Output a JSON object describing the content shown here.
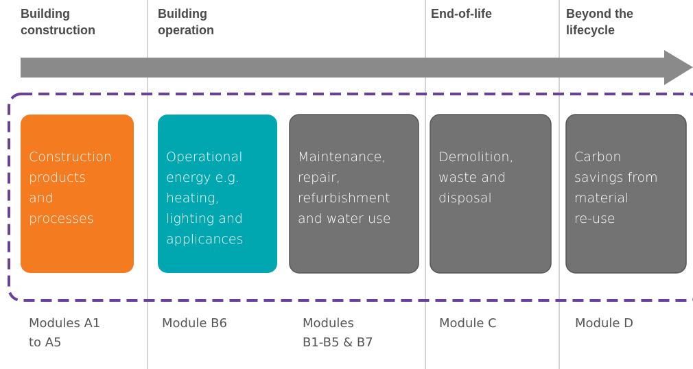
{
  "headers": [
    {
      "lines": [
        "Building",
        "construction"
      ]
    },
    {
      "lines": [
        "Building",
        "operation"
      ]
    },
    {
      "lines": [
        "End-of-life"
      ]
    },
    {
      "lines": [
        "Beyond the",
        "lifecycle"
      ]
    }
  ],
  "boxes": [
    {
      "lines": [
        "Construction",
        "products",
        "and",
        "processes"
      ]
    },
    {
      "lines": [
        "Operational",
        "energy e.g.",
        "heating,",
        "lighting and",
        "applicances"
      ]
    },
    {
      "lines": [
        "Maintenance,",
        "repair,",
        "refurbishment",
        "and water use"
      ]
    },
    {
      "lines": [
        "Demolition,",
        "waste and",
        "disposal"
      ]
    },
    {
      "lines": [
        "Carbon",
        "savings from",
        "material",
        "re-use"
      ]
    }
  ],
  "modules": [
    {
      "lines": [
        "Modules A1",
        "to A5"
      ]
    },
    {
      "lines": [
        "Module B6"
      ]
    },
    {
      "lines": [
        "Modules",
        "B1-B5 & B7"
      ]
    },
    {
      "lines": [
        "Module C"
      ]
    },
    {
      "lines": [
        "Module D"
      ]
    }
  ]
}
